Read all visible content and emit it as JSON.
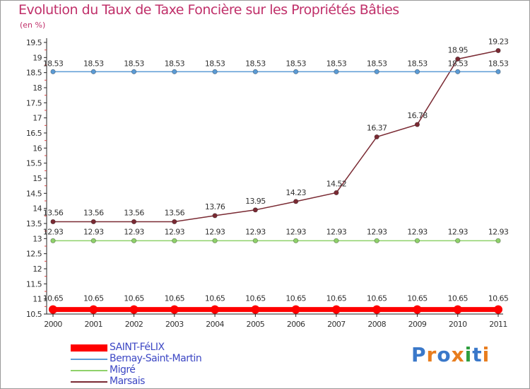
{
  "title": "Evolution du Taux de Taxe Foncière sur les Propriétés Bâties",
  "unit": "(en %)",
  "logo": {
    "text": "Proxiti",
    "colors": [
      "#3a78c9",
      "#e87d1e",
      "#3a78c9",
      "#e87d1e",
      "#2e9e3e",
      "#3a78c9",
      "#e87d1e"
    ]
  },
  "chart_data": {
    "type": "line",
    "title": "Evolution du Taux de Taxe Foncière sur les Propriétés Bâties",
    "ylabel": "(en %)",
    "xlabel": "",
    "ylim": [
      10.5,
      19.5
    ],
    "yticks": [
      "10.5",
      "11",
      "11.5",
      "12",
      "12.5",
      "13",
      "13.5",
      "14",
      "14.5",
      "15",
      "15.5",
      "16",
      "16.5",
      "17",
      "17.5",
      "18",
      "18.5",
      "19",
      "19.5"
    ],
    "categories": [
      "2000",
      "2001",
      "2002",
      "2003",
      "2004",
      "2005",
      "2006",
      "2007",
      "2008",
      "2009",
      "2010",
      "2011"
    ],
    "grid": false,
    "legend_position": "bottom-left",
    "series": [
      {
        "name": "SAINT-FéLIX",
        "color": "#ff0000",
        "values": [
          10.65,
          10.65,
          10.65,
          10.65,
          10.65,
          10.65,
          10.65,
          10.65,
          10.65,
          10.65,
          10.65,
          10.65
        ],
        "labels": [
          "10.65",
          "10.65",
          "10.65",
          "10.65",
          "10.65",
          "10.65",
          "10.65",
          "10.65",
          "10.65",
          "10.65",
          "10.65",
          "10.65"
        ]
      },
      {
        "name": "Bernay-Saint-Martin",
        "color": "#5b9bd5",
        "values": [
          18.53,
          18.53,
          18.53,
          18.53,
          18.53,
          18.53,
          18.53,
          18.53,
          18.53,
          18.53,
          18.53,
          18.53
        ],
        "labels": [
          "18.53",
          "18.53",
          "18.53",
          "18.53",
          "18.53",
          "18.53",
          "18.53",
          "18.53",
          "18.53",
          "18.53",
          "18.53",
          "18.53"
        ]
      },
      {
        "name": "Migré",
        "color": "#8fd16a",
        "values": [
          12.93,
          12.93,
          12.93,
          12.93,
          12.93,
          12.93,
          12.93,
          12.93,
          12.93,
          12.93,
          12.93,
          12.93
        ],
        "labels": [
          "12.93",
          "12.93",
          "12.93",
          "12.93",
          "12.93",
          "12.93",
          "12.93",
          "12.93",
          "12.93",
          "12.93",
          "12.93",
          "12.93"
        ]
      },
      {
        "name": "Marsais",
        "color": "#7a2a33",
        "values": [
          13.56,
          13.56,
          13.56,
          13.56,
          13.76,
          13.95,
          14.23,
          14.52,
          16.37,
          16.78,
          18.95,
          19.23
        ],
        "labels": [
          "13.56",
          "13.56",
          "13.56",
          "13.56",
          "13.76",
          "13.95",
          "14.23",
          "14.52",
          "16.37",
          "16.78",
          "18.95",
          "19.23"
        ]
      }
    ]
  }
}
